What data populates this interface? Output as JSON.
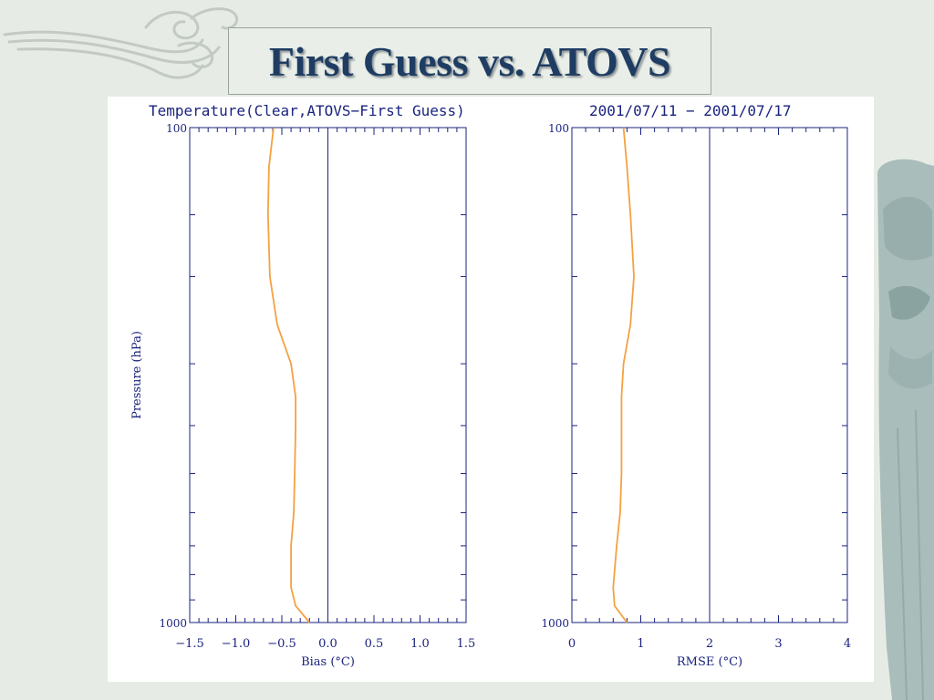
{
  "slide": {
    "title": "First Guess vs. ATOVS",
    "colors": {
      "background": "#e6ece5",
      "title": "#1f3d63",
      "curve": "#f5a142",
      "axis": "#1a237e"
    }
  },
  "header": {
    "left": "Temperature(Clear,ATOVS−First Guess)",
    "right": "2001/07/11 − 2001/07/17"
  },
  "chart_data": [
    {
      "type": "line",
      "title": "Temperature(Clear,ATOVS−First Guess)",
      "xlabel": "Bias (°C)",
      "ylabel": "Pressure (hPa)",
      "xlim": [
        -1.5,
        1.5
      ],
      "ylim": [
        1000,
        100
      ],
      "y_scale": "log",
      "x_ticks": [
        -1.5,
        -1.0,
        -0.5,
        0.0,
        0.5,
        1.0,
        1.5
      ],
      "x_tick_labels": [
        "−1.5",
        "−1.0",
        "−0.5",
        "0.0",
        "0.5",
        "1.0",
        "1.5"
      ],
      "y_tick_labels": [
        "100",
        "1000"
      ],
      "reference_line_x": 0.0,
      "series": [
        {
          "x": [
            -0.59,
            -0.64,
            -0.65,
            -0.63,
            -0.55,
            -0.4,
            -0.35,
            -0.35,
            -0.36,
            -0.37,
            -0.4,
            -0.4,
            -0.35,
            -0.2
          ],
          "y": [
            100,
            120,
            150,
            200,
            250,
            300,
            350,
            400,
            500,
            600,
            700,
            850,
            925,
            1000
          ]
        }
      ]
    },
    {
      "type": "line",
      "title": "2001/07/11 − 2001/07/17",
      "xlabel": "RMSE (°C)",
      "ylabel": "",
      "xlim": [
        0,
        4
      ],
      "ylim": [
        1000,
        100
      ],
      "y_scale": "log",
      "x_ticks": [
        0,
        1,
        2,
        3,
        4
      ],
      "x_tick_labels": [
        "0",
        "1",
        "2",
        "3",
        "4"
      ],
      "y_tick_labels": [
        "100",
        "1000"
      ],
      "reference_line_x": 2,
      "series": [
        {
          "x": [
            0.75,
            0.8,
            0.85,
            0.9,
            0.85,
            0.75,
            0.72,
            0.72,
            0.72,
            0.7,
            0.65,
            0.6,
            0.62,
            0.8
          ],
          "y": [
            100,
            120,
            150,
            200,
            250,
            300,
            350,
            400,
            500,
            600,
            700,
            850,
            925,
            1000
          ]
        }
      ]
    }
  ]
}
